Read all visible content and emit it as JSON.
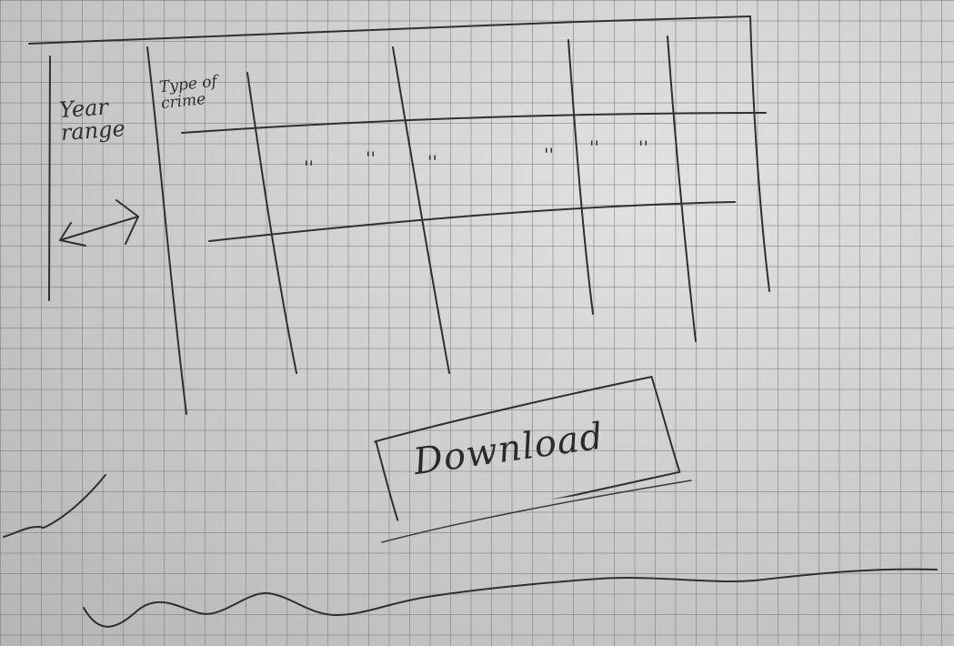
{
  "sidebar": {
    "year_range_label": "Year range",
    "range_slider_icon": "double-arrow-icon"
  },
  "table": {
    "header": "Type of crime",
    "ditto_marks": [
      "''",
      "''",
      "''",
      "''",
      "''",
      "''"
    ]
  },
  "download": {
    "label": "Download"
  }
}
